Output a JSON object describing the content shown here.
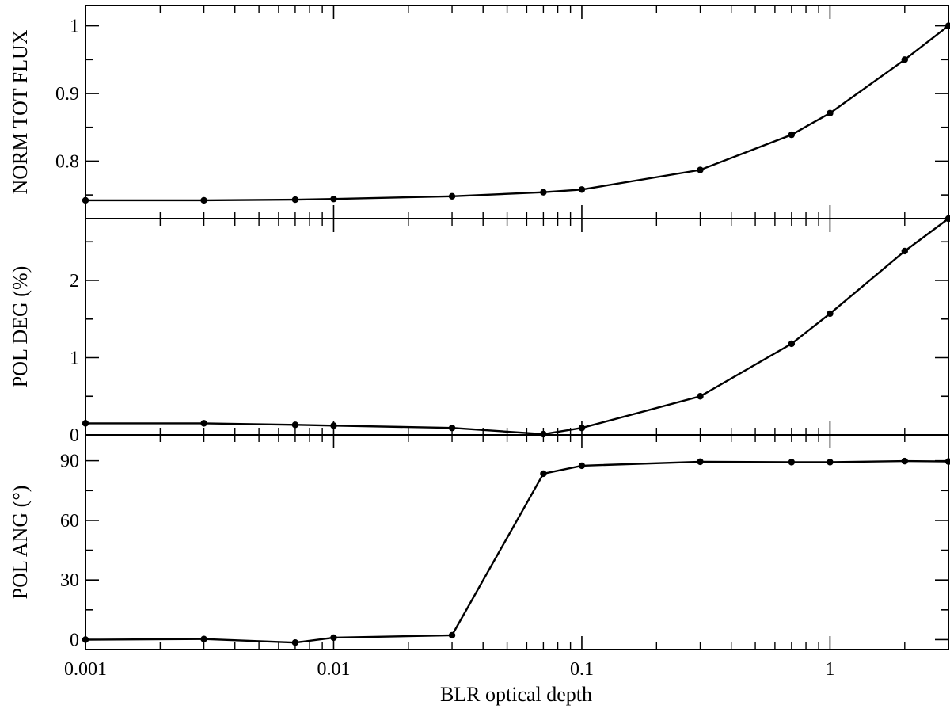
{
  "chart_data": {
    "type": "line",
    "xlabel": "BLR optical depth",
    "xscale": "log",
    "x": [
      0.001,
      0.003,
      0.007,
      0.01,
      0.03,
      0.07,
      0.1,
      0.3,
      0.7,
      1,
      2,
      3
    ],
    "xlim": [
      0.001,
      3
    ],
    "xticks": [
      0.001,
      0.01,
      0.1,
      1
    ],
    "xtick_labels": [
      "0.001",
      "0.01",
      "0.1",
      "1"
    ],
    "grid": false,
    "panels": [
      {
        "ylabel": "NORM TOT FLUX",
        "ylim": [
          0.715,
          1.03
        ],
        "yticks": [
          0.8,
          0.9,
          1
        ],
        "ytick_labels": [
          "0.8",
          "0.9",
          "1"
        ],
        "values": [
          0.742,
          0.742,
          0.743,
          0.744,
          0.748,
          0.754,
          0.758,
          0.787,
          0.839,
          0.871,
          0.95,
          1.0
        ]
      },
      {
        "ylabel": "POL DEG (%)",
        "ylim": [
          0,
          2.8
        ],
        "yticks": [
          0,
          1,
          2
        ],
        "ytick_labels": [
          "0",
          "1",
          "2"
        ],
        "values": [
          0.15,
          0.15,
          0.13,
          0.12,
          0.09,
          0.01,
          0.09,
          0.5,
          1.18,
          1.57,
          2.38,
          2.8
        ]
      },
      {
        "ylabel": "POL ANG (°)",
        "ylim": [
          -5,
          103
        ],
        "yticks": [
          0,
          30,
          60,
          90
        ],
        "ytick_labels": [
          "0",
          "30",
          "60",
          "90"
        ],
        "values": [
          0.0,
          0.3,
          -1.5,
          1.0,
          2.2,
          83.5,
          87.5,
          89.5,
          89.3,
          89.3,
          89.8,
          89.6
        ]
      }
    ]
  }
}
